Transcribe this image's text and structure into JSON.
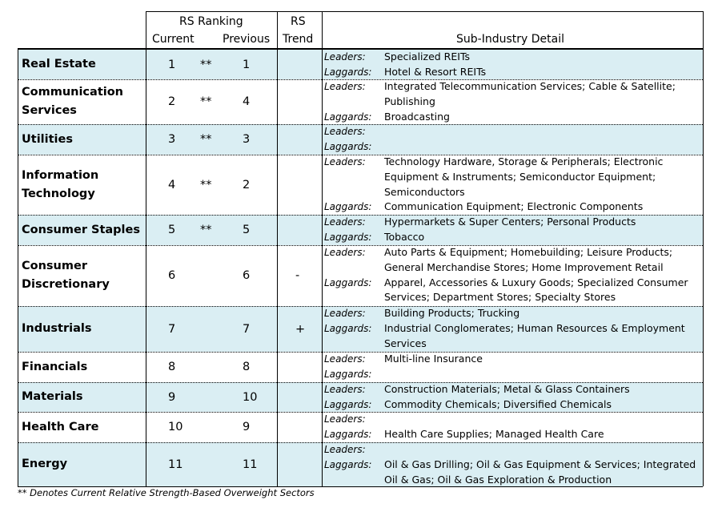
{
  "header": {
    "rs_ranking": "RS Ranking",
    "current": "Current",
    "previous": "Previous",
    "rs": "RS",
    "trend": "Trend",
    "sub_industry": "Sub-Industry Detail"
  },
  "labels": {
    "leaders": "Leaders:",
    "laggards": "Laggards:"
  },
  "shade_color": "#daeef3",
  "rows": [
    {
      "sector": [
        "Real Estate"
      ],
      "current": "1",
      "marker": "**",
      "previous": "1",
      "trend": "",
      "shaded": true,
      "leaders": [
        "Specialized REITs"
      ],
      "laggards": [
        "Hotel & Resort REITs"
      ]
    },
    {
      "sector": [
        "Communication",
        "Services"
      ],
      "current": "2",
      "marker": "**",
      "previous": "4",
      "trend": "",
      "shaded": false,
      "leaders": [
        "Integrated Telecommunication Services; Cable & Satellite;",
        "Publishing"
      ],
      "laggards": [
        "Broadcasting"
      ]
    },
    {
      "sector": [
        "Utilities"
      ],
      "current": "3",
      "marker": "**",
      "previous": "3",
      "trend": "",
      "shaded": true,
      "leaders": [],
      "laggards": []
    },
    {
      "sector": [
        "Information",
        "Technology"
      ],
      "current": "4",
      "marker": "**",
      "previous": "2",
      "trend": "",
      "shaded": false,
      "leaders": [
        "Technology Hardware, Storage & Peripherals; Electronic",
        "Equipment & Instruments; Semiconductor Equipment;",
        "Semiconductors"
      ],
      "laggards": [
        "Communication Equipment; Electronic Components"
      ]
    },
    {
      "sector": [
        "Consumer Staples"
      ],
      "current": "5",
      "marker": "**",
      "previous": "5",
      "trend": "",
      "shaded": true,
      "leaders": [
        "Hypermarkets & Super Centers; Personal Products"
      ],
      "laggards": [
        "Tobacco"
      ]
    },
    {
      "sector": [
        "Consumer",
        "Discretionary"
      ],
      "current": "6",
      "marker": "",
      "previous": "6",
      "trend": "-",
      "shaded": false,
      "leaders": [
        "Auto Parts & Equipment; Homebuilding; Leisure Products;",
        "General Merchandise Stores; Home Improvement Retail"
      ],
      "laggards": [
        "Apparel, Accessories & Luxury Goods; Specialized Consumer",
        "Services; Department Stores; Specialty Stores"
      ]
    },
    {
      "sector": [
        "Industrials"
      ],
      "current": "7",
      "marker": "",
      "previous": "7",
      "trend": "+",
      "shaded": true,
      "leaders": [
        "Building Products; Trucking"
      ],
      "laggards": [
        "Industrial Conglomerates; Human Resources & Employment",
        "Services"
      ]
    },
    {
      "sector": [
        "Financials"
      ],
      "current": "8",
      "marker": "",
      "previous": "8",
      "trend": "",
      "shaded": false,
      "leaders": [
        "Multi-line Insurance"
      ],
      "laggards": []
    },
    {
      "sector": [
        "Materials"
      ],
      "current": "9",
      "marker": "",
      "previous": "10",
      "trend": "",
      "shaded": true,
      "leaders": [
        "Construction Materials; Metal & Glass Containers"
      ],
      "laggards": [
        "Commodity Chemicals; Diversified Chemicals"
      ]
    },
    {
      "sector": [
        "Health Care"
      ],
      "current": "10",
      "marker": "",
      "previous": "9",
      "trend": "",
      "shaded": false,
      "leaders": [],
      "laggards": [
        "Health Care Supplies; Managed Health Care"
      ]
    },
    {
      "sector": [
        "Energy"
      ],
      "current": "11",
      "marker": "",
      "previous": "11",
      "trend": "",
      "shaded": true,
      "leaders": [],
      "laggards": [
        "Oil & Gas Drilling; Oil & Gas Equipment & Services; Integrated",
        "Oil & Gas; Oil & Gas Exploration & Production"
      ]
    }
  ],
  "footnote": "** Denotes Current Relative Strength-Based Overweight Sectors"
}
